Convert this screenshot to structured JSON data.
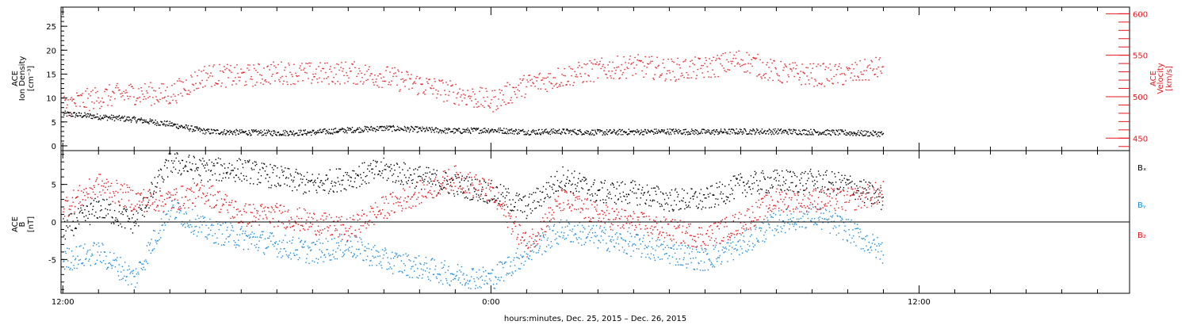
{
  "chart_data": [
    {
      "type": "scatter",
      "panel": "plasma",
      "ylabel_lines": [
        "ACE",
        "Ion Density",
        "[cm⁻³]"
      ],
      "ylim": [
        -1,
        29
      ],
      "y_ticks": [
        0,
        5,
        10,
        15,
        20,
        25
      ],
      "y2label_lines": [
        "ACE",
        "Velocity",
        "[km/s]"
      ],
      "y2lim": [
        435,
        608
      ],
      "y2_ticks": [
        450,
        500,
        550,
        600
      ],
      "colors": {
        "density": "#000000",
        "velocity": "#e8141b"
      },
      "series": [
        {
          "axis": "left",
          "color": "#000000",
          "x": [
            0,
            1,
            2,
            3,
            4,
            5,
            6,
            7,
            8,
            9,
            10,
            11,
            12,
            13,
            14,
            15,
            16,
            17,
            18,
            19,
            20,
            21,
            22,
            23
          ],
          "values": [
            6.8,
            6.2,
            5.6,
            4.6,
            3.1,
            2.9,
            2.8,
            2.9,
            3.4,
            3.8,
            3.5,
            3.2,
            3.4,
            3.0,
            3.1,
            2.9,
            3.0,
            3.1,
            3.0,
            3.1,
            3.1,
            3.0,
            2.8,
            2.6
          ]
        },
        {
          "axis": "right",
          "color": "#e8141b",
          "x": [
            0,
            1,
            2,
            3,
            4,
            5,
            6,
            7,
            8,
            9,
            10,
            11,
            12,
            13,
            14,
            15,
            16,
            17,
            18,
            19,
            20,
            21,
            22,
            23
          ],
          "values": [
            490,
            500,
            505,
            503,
            527,
            525,
            530,
            528,
            530,
            525,
            515,
            505,
            495,
            515,
            525,
            533,
            538,
            533,
            535,
            545,
            530,
            527,
            527,
            537
          ]
        }
      ]
    },
    {
      "type": "scatter",
      "panel": "magnetic",
      "ylabel_lines": [
        "ACE",
        "B",
        "[nT]"
      ],
      "ylim": [
        -9.5,
        9.5
      ],
      "y_ticks": [
        -5,
        0,
        5
      ],
      "legend": [
        "Bₓ",
        "Bᵧ",
        "B₂"
      ],
      "legend_colors": [
        "#000000",
        "#1a8cd8",
        "#e8141b"
      ],
      "series": [
        {
          "legend_index": 0,
          "x": [
            0,
            1,
            2,
            3,
            4,
            5,
            6,
            7,
            8,
            9,
            10,
            11,
            12,
            13,
            14,
            15,
            16,
            17,
            18,
            19,
            20,
            21,
            22,
            23
          ],
          "values": [
            -1,
            2,
            0,
            8,
            7,
            7,
            6,
            5,
            6,
            7,
            6,
            5,
            4,
            2,
            6,
            4,
            4,
            3,
            3,
            5,
            5.5,
            5.5,
            5,
            3
          ]
        },
        {
          "legend_index": 1,
          "x": [
            0,
            1,
            2,
            3,
            4,
            5,
            6,
            7,
            8,
            9,
            10,
            11,
            12,
            13,
            14,
            15,
            16,
            17,
            18,
            19,
            20,
            21,
            22,
            23
          ],
          "values": [
            -5,
            -4,
            -7.5,
            2,
            -1,
            -2,
            -3,
            -4,
            -3,
            -5,
            -6,
            -7,
            -7.5,
            -4,
            -1,
            -2,
            -3,
            -4,
            -5,
            -3,
            0,
            1,
            -1,
            -4
          ]
        },
        {
          "legend_index": 2,
          "x": [
            0,
            1,
            2,
            3,
            4,
            5,
            6,
            7,
            8,
            9,
            10,
            11,
            12,
            13,
            14,
            15,
            16,
            17,
            18,
            19,
            20,
            21,
            22,
            23
          ],
          "values": [
            2,
            5,
            3,
            3,
            4,
            1,
            1,
            0,
            -1,
            2,
            4,
            6,
            4,
            -3,
            3,
            1,
            0,
            -1,
            -2,
            0,
            3,
            3,
            3,
            4
          ]
        }
      ]
    }
  ],
  "x_axis": {
    "tick_labels": [
      "12:00",
      "0:00",
      "12:00"
    ],
    "tick_hours": [
      0,
      12,
      24
    ],
    "range_hours": [
      -0.05,
      29.9
    ],
    "xlabel": "hours:minutes, Dec. 25, 2015 – Dec. 26, 2015"
  }
}
